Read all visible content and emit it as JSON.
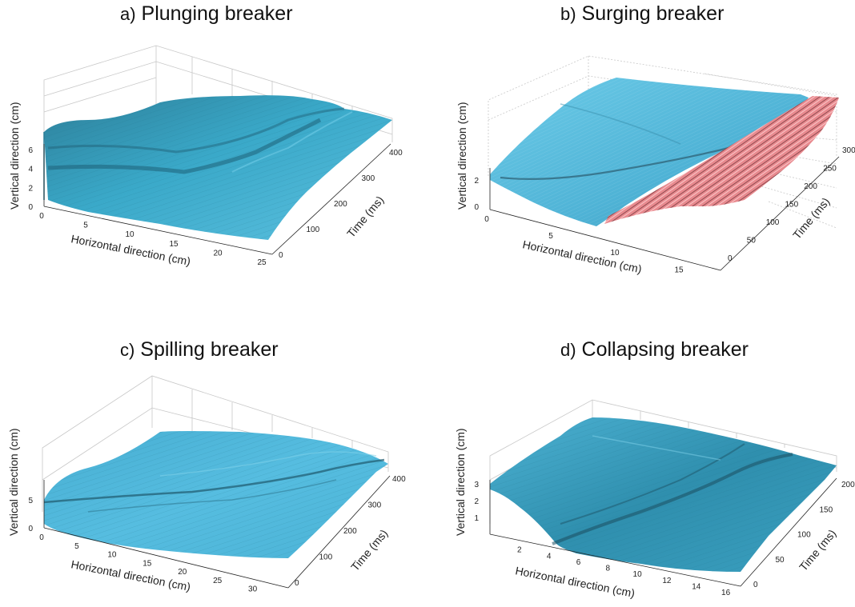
{
  "chart_data": [
    {
      "type": "surface",
      "panel_label": "a)",
      "title": "Plunging breaker",
      "xlabel": "Horizontal direction (cm)",
      "ylabel": "Time (ms)",
      "zlabel": "Vertical direction (cm)",
      "x_ticks": [
        "0",
        "5",
        "10",
        "15",
        "20",
        "25"
      ],
      "y_ticks": [
        "0",
        "100",
        "200",
        "300",
        "400"
      ],
      "z_ticks": [
        "0",
        "2",
        "4",
        "6"
      ],
      "xlim": [
        0,
        27
      ],
      "ylim": [
        0,
        450
      ],
      "zlim": [
        0,
        7
      ],
      "surface_color": "#3aa9c9",
      "grid": true
    },
    {
      "type": "surface",
      "panel_label": "b)",
      "title": "Surging breaker",
      "xlabel": "Horizontal direction (cm)",
      "ylabel": "Time (ms)",
      "zlabel": "Vertical direction (cm)",
      "x_ticks": [
        "0",
        "5",
        "10",
        "15"
      ],
      "y_ticks": [
        "0",
        "50",
        "100",
        "150",
        "200",
        "250",
        "300"
      ],
      "z_ticks": [
        "0",
        "2"
      ],
      "xlim": [
        0,
        18
      ],
      "ylim": [
        0,
        300
      ],
      "zlim": [
        0,
        3
      ],
      "surface_color": "#52b7d9",
      "highlight_color": "#e88a8f",
      "grid": true
    },
    {
      "type": "surface",
      "panel_label": "c)",
      "title": "Spilling breaker",
      "xlabel": "Horizontal direction (cm)",
      "ylabel": "Time (ms)",
      "zlabel": "Vertical direction (cm)",
      "x_ticks": [
        "0",
        "5",
        "10",
        "15",
        "20",
        "25",
        "30"
      ],
      "y_ticks": [
        "0",
        "100",
        "200",
        "300",
        "400"
      ],
      "z_ticks": [
        "0",
        "5"
      ],
      "xlim": [
        0,
        33
      ],
      "ylim": [
        0,
        450
      ],
      "zlim": [
        0,
        8
      ],
      "surface_color": "#4bb3d6",
      "grid": true
    },
    {
      "type": "surface",
      "panel_label": "d)",
      "title": "Collapsing breaker",
      "xlabel": "Horizontal direction (cm)",
      "ylabel": "Time (ms)",
      "zlabel": "Vertical direction (cm)",
      "x_ticks": [
        "2",
        "4",
        "6",
        "8",
        "10",
        "12",
        "14",
        "16"
      ],
      "y_ticks": [
        "0",
        "50",
        "100",
        "150",
        "200"
      ],
      "z_ticks": [
        "1",
        "2",
        "3"
      ],
      "xlim": [
        0,
        17
      ],
      "ylim": [
        0,
        230
      ],
      "zlim": [
        0,
        3
      ],
      "surface_color": "#3a9fbf",
      "grid": true
    }
  ]
}
